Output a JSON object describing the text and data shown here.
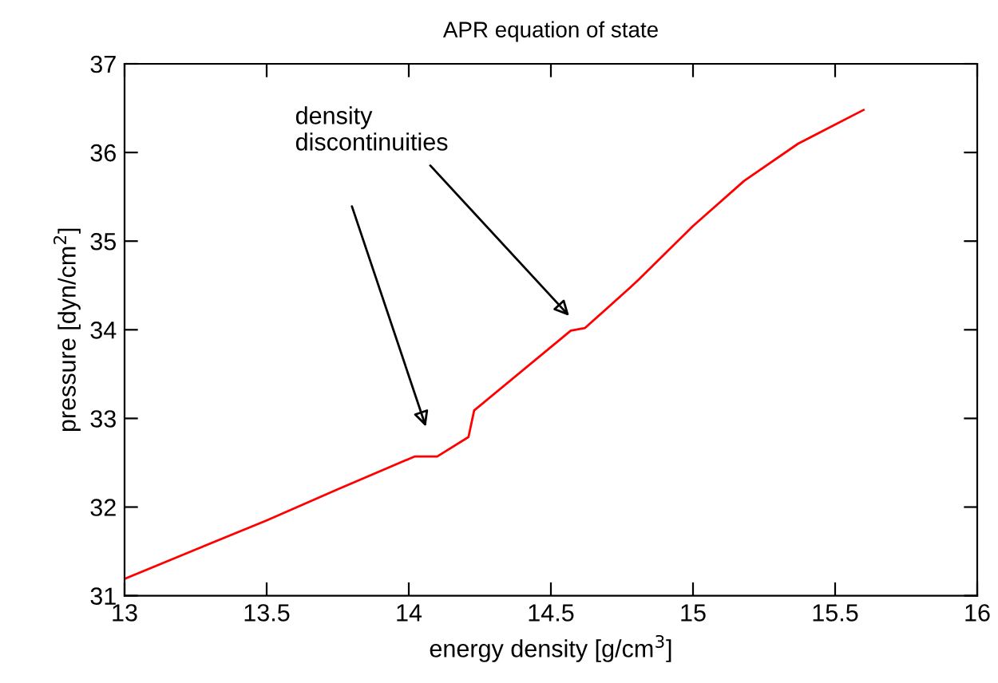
{
  "chart_data": {
    "type": "line",
    "title": "APR equation of state",
    "xlabel": "energy density [g/cm$^{3}$]",
    "ylabel": "pressure [dyn/cm$^{2}$]",
    "x": [
      13.0,
      13.25,
      13.5,
      13.75,
      14.02,
      14.1,
      14.21,
      14.23,
      14.57,
      14.62,
      14.78,
      14.81,
      15.0,
      15.18,
      15.37,
      15.6
    ],
    "series": [
      {
        "color": "#ff0000",
        "values": [
          31.19,
          31.52,
          31.85,
          32.2,
          32.57,
          32.57,
          32.79,
          33.09,
          33.99,
          34.02,
          34.48,
          34.57,
          35.17,
          35.68,
          36.1,
          36.48
        ]
      }
    ],
    "xlim": [
      13,
      16
    ],
    "ylim": [
      31,
      37
    ],
    "xticks": [
      13,
      13.5,
      14,
      14.5,
      15,
      15.5,
      16
    ],
    "yticks": [
      31,
      32,
      33,
      34,
      35,
      36,
      37
    ],
    "grid": false,
    "legend": false,
    "marker": "none",
    "line_style": "solid",
    "annotations": [
      "density\ndiscontinuities"
    ]
  }
}
